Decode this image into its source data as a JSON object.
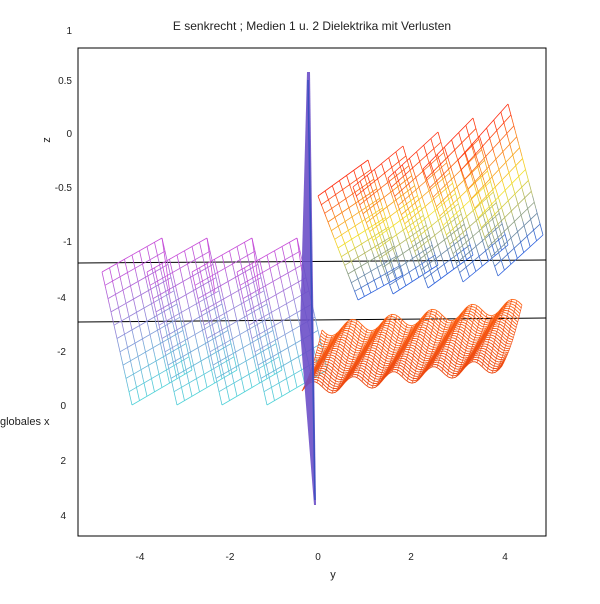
{
  "title": "E senkrecht ;  Medien 1 u. 2 Dielektrika mit Verlusten",
  "axes": {
    "y_label": "y",
    "z_label": "z",
    "x_label": "globales x",
    "bottom_ticks": [
      "-4",
      "-2",
      "0",
      "2",
      "4"
    ],
    "left_top_ticks": [
      "1",
      "0.5",
      "0",
      "-0.5",
      "-1"
    ],
    "left_bottom_ticks": [
      "-4",
      "-2",
      "0",
      "2",
      "4"
    ]
  },
  "colors": {
    "incident": "#c84bd8",
    "incident_low": "#4fd3d8",
    "reflected_high": "#ff2a10",
    "reflected_mid": "#f4e22a",
    "reflected_low": "#2a60e0",
    "interface": "#6b4fc8",
    "bottom_surface": "#ff6a1a"
  }
}
